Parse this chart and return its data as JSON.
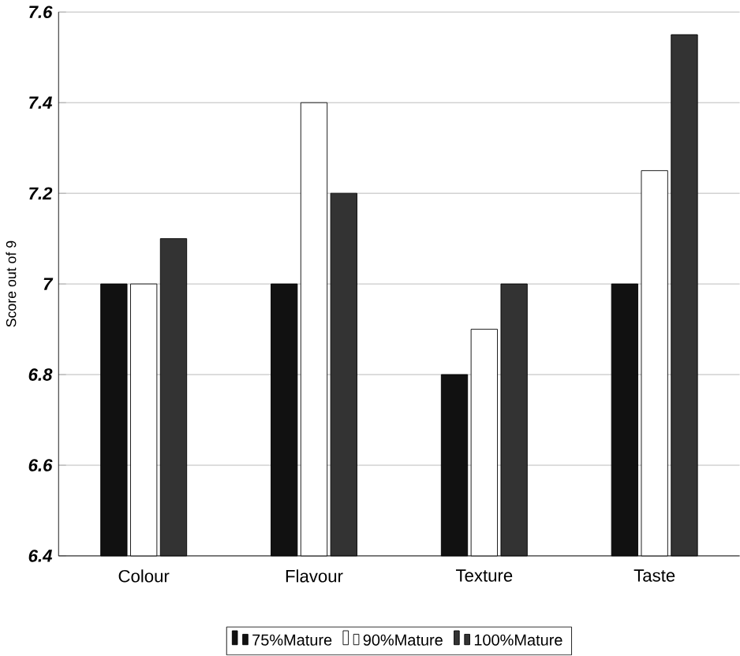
{
  "chart_data": {
    "type": "bar",
    "ylabel": "Score out of 9",
    "categories": [
      "Colour",
      "Flavour",
      "Texture",
      "Taste"
    ],
    "series": [
      {
        "name": "75%Mature",
        "color": "#111111",
        "values": [
          7.0,
          7.0,
          6.8,
          7.0
        ]
      },
      {
        "name": "90%Mature",
        "color": "#ffffff",
        "values": [
          7.0,
          7.4,
          6.9,
          7.25
        ]
      },
      {
        "name": "100%Mature",
        "color": "#333333",
        "values": [
          7.1,
          7.2,
          7.0,
          7.55
        ]
      }
    ],
    "ylim": [
      6.4,
      7.6
    ],
    "yticks": [
      6.4,
      6.6,
      6.8,
      {
        "value": 7.0,
        "label": "7"
      },
      7.2,
      7.4,
      7.6
    ],
    "grid": "y",
    "legend": "bottom"
  }
}
